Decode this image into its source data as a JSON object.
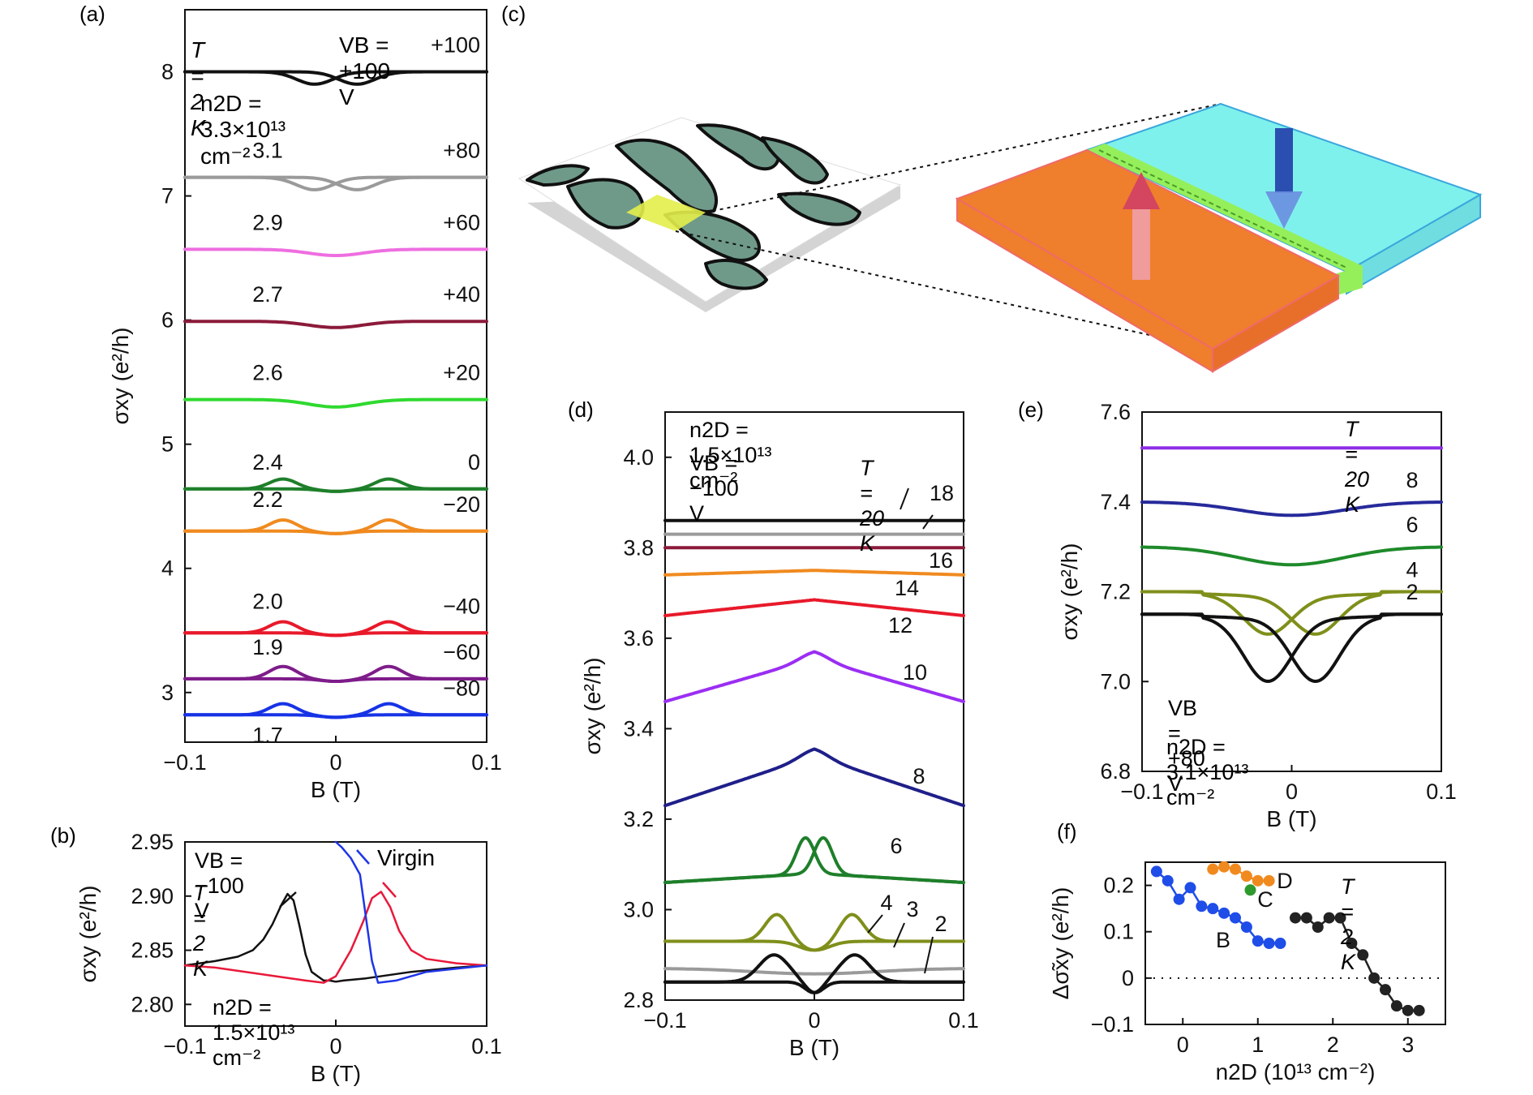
{
  "panel_labels": {
    "a": "(a)",
    "b": "(b)",
    "c": "(c)",
    "d": "(d)",
    "e": "(e)",
    "f": "(f)"
  },
  "common": {
    "x_axis_label": "B (T)",
    "y_axis_label": "σxy (e²/h)"
  },
  "panels": {
    "a": {
      "header_left": "T = 2 K",
      "header_right": "VB = +100 V",
      "density_note": "n2D = 3.3×10¹³ cm⁻²"
    },
    "b": {
      "legend_vb": "VB = −100 V",
      "legend_t": "T = 2 K",
      "legend_virgin": "Virgin",
      "density_note": "n2D = 1.5×10¹³ cm⁻²"
    },
    "c": {
      "description_colors": {
        "domain_up": "#ef7e2d",
        "domain_down": "#7ff1ec",
        "wall": "#95ef5a",
        "pattern": "#6f9a8a"
      }
    },
    "d": {
      "density_note": "n2D = 1.5×10¹³ cm⁻²",
      "vb_note": "VB = −100 V",
      "temp_note": "T = 20 K"
    },
    "e": {
      "temp_note": "T = 20 K",
      "vb_note": "VB = +80 V",
      "density_note": "n2D = 3.1×10¹³ cm⁻²"
    },
    "f": {
      "temp_note": "T = 2 K",
      "x_axis_label": "n2D (10¹³ cm⁻²)",
      "y_axis_label": "Δσ̃xy (e²/h)"
    }
  },
  "chart_data": [
    {
      "id": "a",
      "type": "line",
      "xlim": [
        -0.1,
        0.1
      ],
      "ylim": [
        2.6,
        8.5
      ],
      "xticks": [
        "−0.1",
        "0",
        "0.1"
      ],
      "yticks": [
        "3",
        "4",
        "5",
        "6",
        "7",
        "8"
      ],
      "xlabel": "B (T)",
      "ylabel": "σxy (e²/h)",
      "series": [
        {
          "vb_label": "+100",
          "n_label": "",
          "base": 8.0,
          "dip": -0.1,
          "type": "hyst",
          "color": "#111111"
        },
        {
          "vb_label": "+80",
          "n_label": "3.1",
          "base": 7.15,
          "dip": -0.1,
          "type": "hyst",
          "color": "#9a9a9a"
        },
        {
          "vb_label": "+60",
          "n_label": "2.9",
          "base": 6.57,
          "dip": -0.05,
          "type": "single",
          "color": "#ee6ee0"
        },
        {
          "vb_label": "+40",
          "n_label": "2.7",
          "base": 5.99,
          "dip": -0.05,
          "type": "single",
          "color": "#8b1a3a"
        },
        {
          "vb_label": "+20",
          "n_label": "2.6",
          "base": 5.36,
          "dip": -0.06,
          "type": "single",
          "color": "#2fd92f"
        },
        {
          "vb_label": "0",
          "n_label": "2.4",
          "base": 4.64,
          "dip": 0.08,
          "type": "bump",
          "color": "#1e7f2a"
        },
        {
          "vb_label": "−20",
          "n_label": "2.2",
          "base": 4.3,
          "dip": 0.09,
          "type": "bump",
          "color": "#f08a1f"
        },
        {
          "vb_label": "−40",
          "n_label": "2.0",
          "base": 3.48,
          "dip": 0.09,
          "type": "bump",
          "color": "#e8192a"
        },
        {
          "vb_label": "−60",
          "n_label": "1.9",
          "base": 3.11,
          "dip": 0.1,
          "type": "bump",
          "color": "#7e1c8a"
        },
        {
          "vb_label": "−80",
          "n_label": "1.7",
          "base": 2.82,
          "dip": 0.09,
          "type": "bump",
          "color": "#1733e6"
        }
      ]
    },
    {
      "id": "b",
      "type": "line",
      "xlim": [
        -0.1,
        0.1
      ],
      "ylim": [
        2.78,
        2.95
      ],
      "xticks": [
        "−0.1",
        "0",
        "0.1"
      ],
      "yticks": [
        "2.80",
        "2.85",
        "2.90",
        "2.95"
      ],
      "xlabel": "B (T)",
      "ylabel": "σxy (e²/h)",
      "series": [
        {
          "name": "sweep down",
          "color": "#111111",
          "x": [
            -0.1,
            -0.08,
            -0.065,
            -0.055,
            -0.048,
            -0.042,
            -0.036,
            -0.032,
            -0.028,
            -0.024,
            -0.02,
            -0.016,
            -0.012,
            -0.008,
            -0.004,
            0,
            0.005,
            0.02,
            0.05,
            0.08,
            0.1
          ],
          "y": [
            2.836,
            2.84,
            2.844,
            2.85,
            2.86,
            2.874,
            2.892,
            2.902,
            2.896,
            2.872,
            2.846,
            2.83,
            2.826,
            2.822,
            2.822,
            2.821,
            2.822,
            2.824,
            2.83,
            2.834,
            2.836
          ]
        },
        {
          "name": "sweep up",
          "color": "#e8193a",
          "x": [
            -0.1,
            -0.08,
            -0.05,
            -0.02,
            -0.008,
            0,
            0.01,
            0.018,
            0.024,
            0.03,
            0.036,
            0.042,
            0.05,
            0.06,
            0.08,
            0.1
          ],
          "y": [
            2.836,
            2.834,
            2.828,
            2.822,
            2.82,
            2.826,
            2.85,
            2.876,
            2.898,
            2.904,
            2.89,
            2.868,
            2.85,
            2.842,
            2.838,
            2.836
          ]
        },
        {
          "name": "Virgin",
          "color": "#1f35e8",
          "x": [
            0,
            0.004,
            0.01,
            0.016,
            0.02,
            0.024,
            0.028,
            0.04,
            0.06,
            0.1
          ],
          "y": [
            2.95,
            2.945,
            2.935,
            2.92,
            2.88,
            2.84,
            2.82,
            2.822,
            2.83,
            2.836
          ]
        }
      ]
    },
    {
      "id": "d",
      "type": "line",
      "xlim": [
        -0.1,
        0.1
      ],
      "ylim": [
        2.8,
        4.1
      ],
      "xticks": [
        "−0.1",
        "0",
        "0.1"
      ],
      "yticks": [
        "2.8",
        "3.0",
        "3.2",
        "3.4",
        "3.6",
        "3.8",
        "4.0"
      ],
      "xlabel": "B (T)",
      "ylabel": "σxy (e²/h)",
      "series": [
        {
          "temp_label": "20",
          "base": 3.86,
          "amp": 0.0,
          "type": "flat",
          "color": "#111111"
        },
        {
          "temp_label": "18",
          "base": 3.83,
          "amp": 0.0,
          "type": "flat",
          "color": "#9a9a9a"
        },
        {
          "temp_label": "16",
          "base": 3.8,
          "amp": 0.0,
          "type": "flat",
          "color": "#8b1a3a"
        },
        {
          "temp_label": "14",
          "base": 3.74,
          "amp": 0.01,
          "type": "peak",
          "color": "#f08a1f"
        },
        {
          "temp_label": "12",
          "base": 3.65,
          "amp": 0.035,
          "type": "peak",
          "color": "#e8192a"
        },
        {
          "temp_label": "10",
          "base": 3.46,
          "amp": 0.095,
          "type": "peak",
          "color": "#9b2ef2"
        },
        {
          "temp_label": "8",
          "base": 3.23,
          "amp": 0.11,
          "type": "peak",
          "color": "#1f1f8a"
        },
        {
          "temp_label": "6",
          "base": 3.06,
          "amp": 0.08,
          "type": "double",
          "color": "#1e7f2a"
        },
        {
          "temp_label": "4",
          "base": 2.93,
          "amp": 0.06,
          "type": "hump",
          "color": "#7f8f1a"
        },
        {
          "temp_label": "3",
          "base": 2.87,
          "amp": 0.0,
          "type": "hump3",
          "color": "#9a9a9a"
        },
        {
          "temp_label": "2",
          "base": 2.84,
          "amp": 0.06,
          "type": "hump2",
          "color": "#111111"
        }
      ]
    },
    {
      "id": "e",
      "type": "line",
      "xlim": [
        -0.1,
        0.1
      ],
      "ylim": [
        6.8,
        7.6
      ],
      "xticks": [
        "−0.1",
        "0",
        "0.1"
      ],
      "yticks": [
        "6.8",
        "7.0",
        "7.2",
        "7.4",
        "7.6"
      ],
      "xlabel": "B (T)",
      "ylabel": "σxy (e²/h)",
      "series": [
        {
          "temp_label": "20",
          "base": 7.52,
          "depth": 0.0,
          "type": "flat",
          "color": "#8d2ee6"
        },
        {
          "temp_label": "8",
          "base": 7.4,
          "depth": 0.03,
          "type": "single",
          "color": "#262a9a"
        },
        {
          "temp_label": "6",
          "base": 7.3,
          "depth": 0.04,
          "type": "single",
          "color": "#1e8a2a"
        },
        {
          "temp_label": "4",
          "base": 7.2,
          "depth": 0.085,
          "type": "hyst",
          "color": "#7f8f1a"
        },
        {
          "temp_label": "2",
          "base": 7.15,
          "depth": 0.14,
          "type": "hyst",
          "color": "#111111"
        }
      ]
    },
    {
      "id": "f",
      "type": "scatter",
      "xlim": [
        -0.5,
        3.5
      ],
      "ylim": [
        -0.1,
        0.25
      ],
      "xticks": [
        "0",
        "1",
        "2",
        "3"
      ],
      "yticks": [
        "−0.1",
        "0",
        "0.1",
        "0.2"
      ],
      "xlabel": "n2D (10¹³ cm⁻²)",
      "ylabel": "Δσ̃xy (e²/h)",
      "series": [
        {
          "name": "B",
          "color": "#1f4de8",
          "x": [
            -0.35,
            -0.2,
            -0.05,
            0.1,
            0.25,
            0.4,
            0.55,
            0.7,
            0.85,
            1.0,
            1.15,
            1.3
          ],
          "y": [
            0.23,
            0.21,
            0.17,
            0.195,
            0.155,
            0.15,
            0.14,
            0.13,
            0.11,
            0.08,
            0.075,
            0.075
          ]
        },
        {
          "name": "D",
          "color": "#f08a1f",
          "x": [
            0.4,
            0.55,
            0.7,
            0.85,
            1.0,
            1.15
          ],
          "y": [
            0.235,
            0.24,
            0.235,
            0.22,
            0.21,
            0.21
          ]
        },
        {
          "name": "C",
          "color": "#2e9a2e",
          "x": [
            0.9
          ],
          "y": [
            0.19
          ]
        },
        {
          "name": "",
          "color": "#222222",
          "x": [
            1.5,
            1.65,
            1.8,
            1.95,
            2.1,
            2.25,
            2.4,
            2.55,
            2.7,
            2.85,
            3.0,
            3.15
          ],
          "y": [
            0.13,
            0.13,
            0.11,
            0.13,
            0.13,
            0.075,
            0.05,
            0.0,
            -0.025,
            -0.06,
            -0.07,
            -0.07
          ]
        }
      ]
    }
  ]
}
